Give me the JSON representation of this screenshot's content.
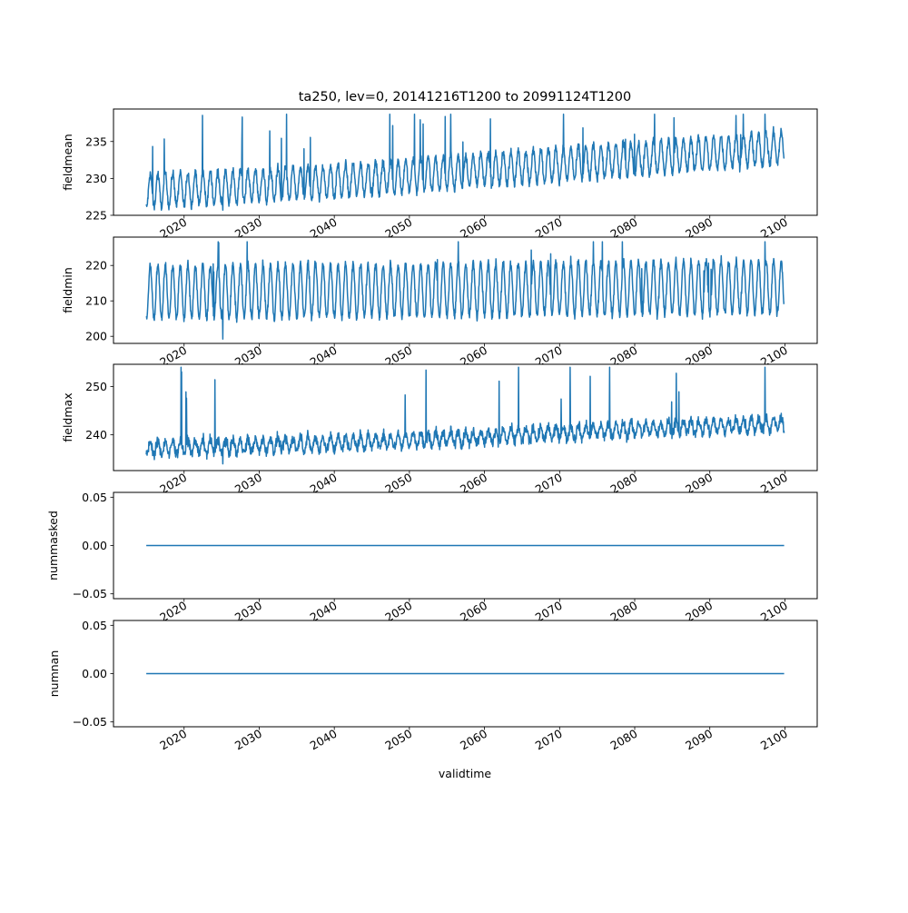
{
  "figure": {
    "title": "ta250, lev=0, 20141216T1200 to 20991124T1200",
    "xlabel": "validtime"
  },
  "colors": {
    "series": "#1f77b4",
    "axes": "#000000",
    "background": "#ffffff"
  },
  "chart_data": [
    {
      "type": "line",
      "ylabel": "fieldmean",
      "xlim": [
        2010.6,
        2104.3
      ],
      "ylim": [
        225,
        239.4
      ],
      "yticks": [
        "225",
        "230",
        "235"
      ],
      "xticks": [
        "2020",
        "2030",
        "2040",
        "2050",
        "2060",
        "2070",
        "2080",
        "2090",
        "2100"
      ],
      "x_range": [
        2014.96,
        2099.9
      ],
      "trend": [
        [
          2015,
          228.3
        ],
        [
          2040,
          229.6
        ],
        [
          2060,
          231.2
        ],
        [
          2080,
          232.6
        ],
        [
          2099.9,
          234.2
        ]
      ],
      "seasonal_amplitude": 2.2,
      "noise": 0.6,
      "extremes": {
        "max": 238.7,
        "min": 225.7
      }
    },
    {
      "type": "line",
      "ylabel": "fieldmin",
      "xlim": [
        2010.6,
        2104.3
      ],
      "ylim": [
        198,
        228
      ],
      "yticks": [
        "200",
        "210",
        "220"
      ],
      "xticks": [
        "2020",
        "2030",
        "2040",
        "2050",
        "2060",
        "2070",
        "2080",
        "2090",
        "2100"
      ],
      "x_range": [
        2014.96,
        2099.9
      ],
      "trend": [
        [
          2015,
          212.5
        ],
        [
          2060,
          213.2
        ],
        [
          2099.9,
          214.0
        ]
      ],
      "seasonal_amplitude": 7.5,
      "noise": 1.2,
      "extremes": {
        "max": 226.7,
        "min": 199.2
      }
    },
    {
      "type": "line",
      "ylabel": "fieldmax",
      "xlim": [
        2010.6,
        2104.3
      ],
      "ylim": [
        232.6,
        254.6
      ],
      "yticks": [
        "240",
        "250"
      ],
      "xticks": [
        "2020",
        "2030",
        "2040",
        "2050",
        "2060",
        "2070",
        "2080",
        "2090",
        "2100"
      ],
      "x_range": [
        2014.96,
        2099.9
      ],
      "trend": [
        [
          2015,
          237.2
        ],
        [
          2040,
          238.3
        ],
        [
          2060,
          239.6
        ],
        [
          2080,
          241.2
        ],
        [
          2099.9,
          242.3
        ]
      ],
      "seasonal_amplitude": 1.4,
      "noise": 1.1,
      "extremes": {
        "max": 254.0,
        "min": 234.0
      }
    },
    {
      "type": "line",
      "ylabel": "nummasked",
      "xlim": [
        2010.6,
        2104.3
      ],
      "ylim": [
        -0.055,
        0.055
      ],
      "yticks": [
        "−0.05",
        "0.00",
        "0.05"
      ],
      "xticks": [
        "2020",
        "2030",
        "2040",
        "2050",
        "2060",
        "2070",
        "2080",
        "2090",
        "2100"
      ],
      "constant": 0.0,
      "x_range": [
        2014.96,
        2099.9
      ]
    },
    {
      "type": "line",
      "ylabel": "numnan",
      "xlim": [
        2010.6,
        2104.3
      ],
      "ylim": [
        -0.055,
        0.055
      ],
      "yticks": [
        "−0.05",
        "0.00",
        "0.05"
      ],
      "xticks": [
        "2020",
        "2030",
        "2040",
        "2050",
        "2060",
        "2070",
        "2080",
        "2090",
        "2100"
      ],
      "constant": 0.0,
      "x_range": [
        2014.96,
        2099.9
      ]
    }
  ]
}
